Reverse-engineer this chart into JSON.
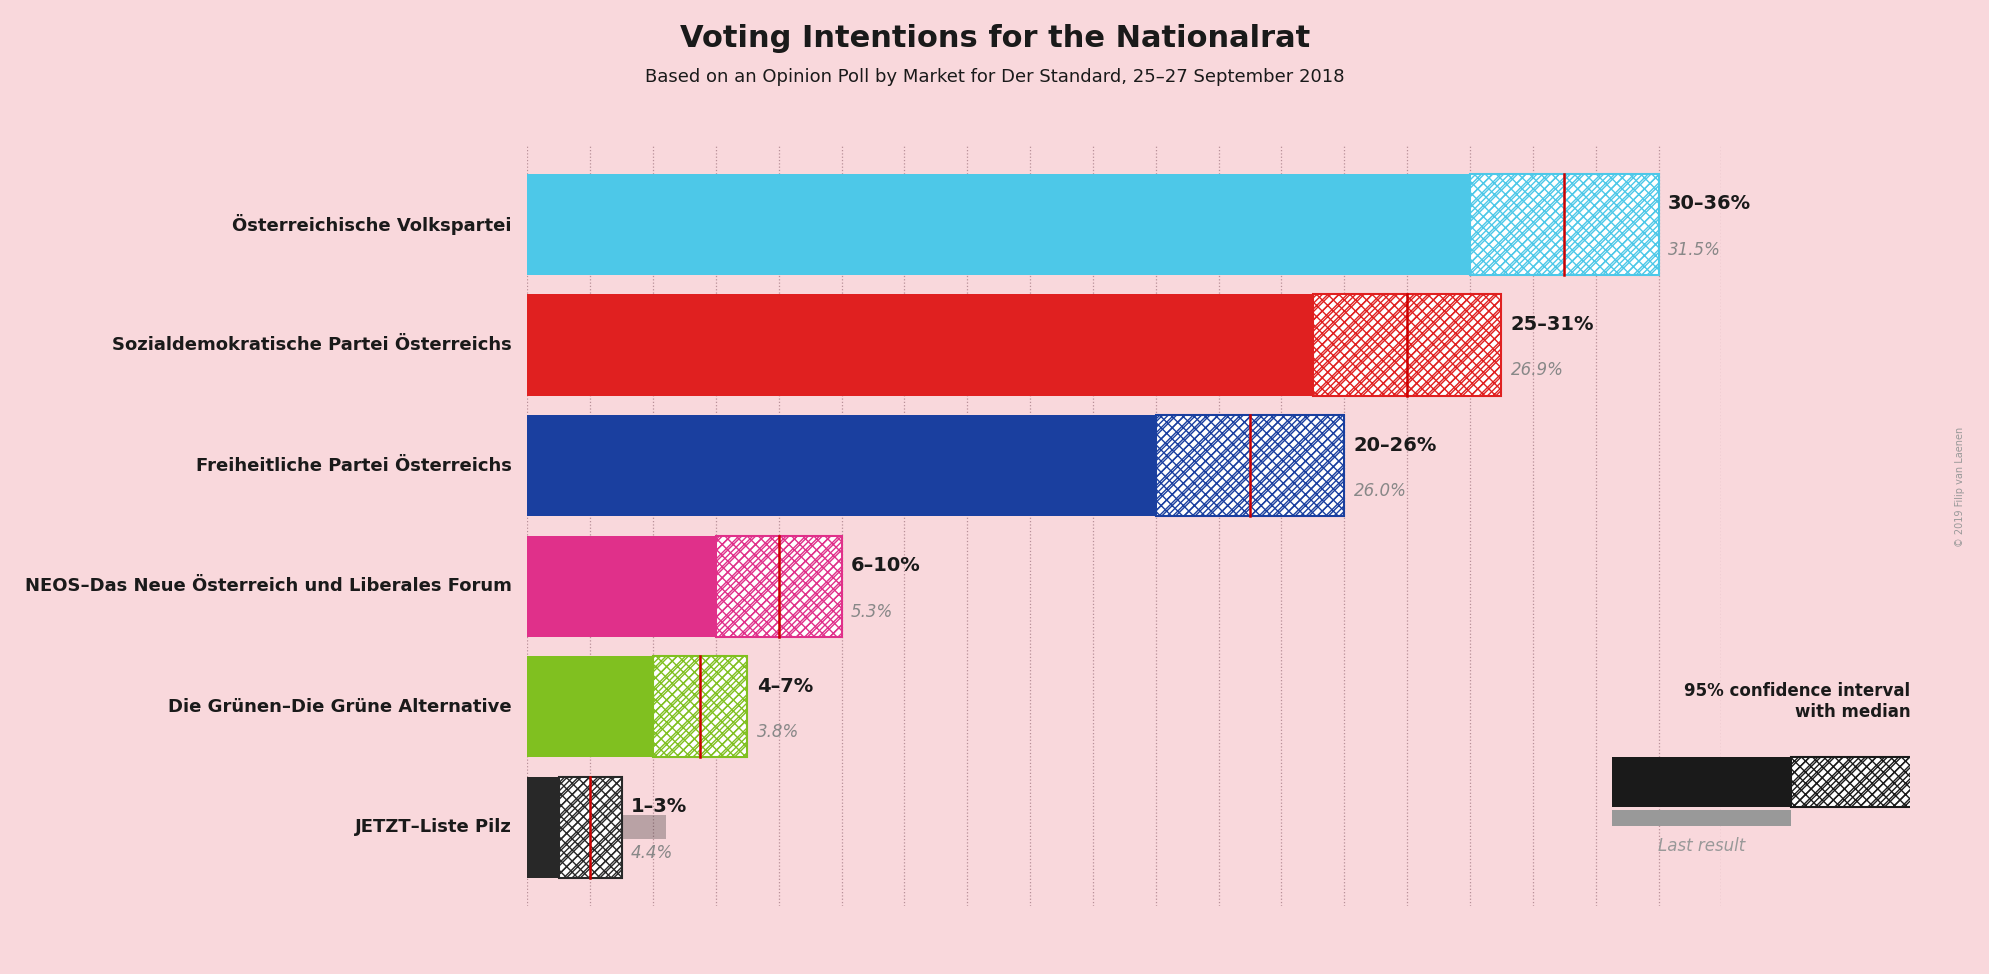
{
  "title": "Voting Intentions for the Nationalrat",
  "subtitle": "Based on an Opinion Poll by Market for Der Standard, 25–27 September 2018",
  "copyright": "© 2019 Filip van Laenen",
  "background_color": "#f9d8dc",
  "parties": [
    {
      "name": "Österreichische Volkspartei",
      "color": "#4dc8e8",
      "ci_low": 30,
      "ci_high": 36,
      "median": 33,
      "last_result": 31.5,
      "label": "30–36%",
      "last_label": "31.5%"
    },
    {
      "name": "Sozialdemokratische Partei Österreichs",
      "color": "#e02020",
      "ci_low": 25,
      "ci_high": 31,
      "median": 28,
      "last_result": 26.9,
      "label": "25–31%",
      "last_label": "26.9%"
    },
    {
      "name": "Freiheitliche Partei Österreichs",
      "color": "#1a3f9f",
      "ci_low": 20,
      "ci_high": 26,
      "median": 23,
      "last_result": 26.0,
      "label": "20–26%",
      "last_label": "26.0%"
    },
    {
      "name": "NEOS–Das Neue Österreich und Liberales Forum",
      "color": "#e0308a",
      "ci_low": 6,
      "ci_high": 10,
      "median": 8,
      "last_result": 5.3,
      "label": "6–10%",
      "last_label": "5.3%"
    },
    {
      "name": "Die Grünen–Die Grüne Alternative",
      "color": "#80c020",
      "ci_low": 4,
      "ci_high": 7,
      "median": 5.5,
      "last_result": 3.8,
      "label": "4–7%",
      "last_label": "3.8%"
    },
    {
      "name": "JETZT–Liste Pilz",
      "color": "#282828",
      "ci_low": 1,
      "ci_high": 3,
      "median": 2,
      "last_result": 4.4,
      "label": "1–3%",
      "last_label": "4.4%"
    }
  ],
  "xmax": 38,
  "median_line_color": "#cc0000",
  "grid_color": "#b89098",
  "grid_linestyle": ":",
  "grid_linewidth": 0.9
}
